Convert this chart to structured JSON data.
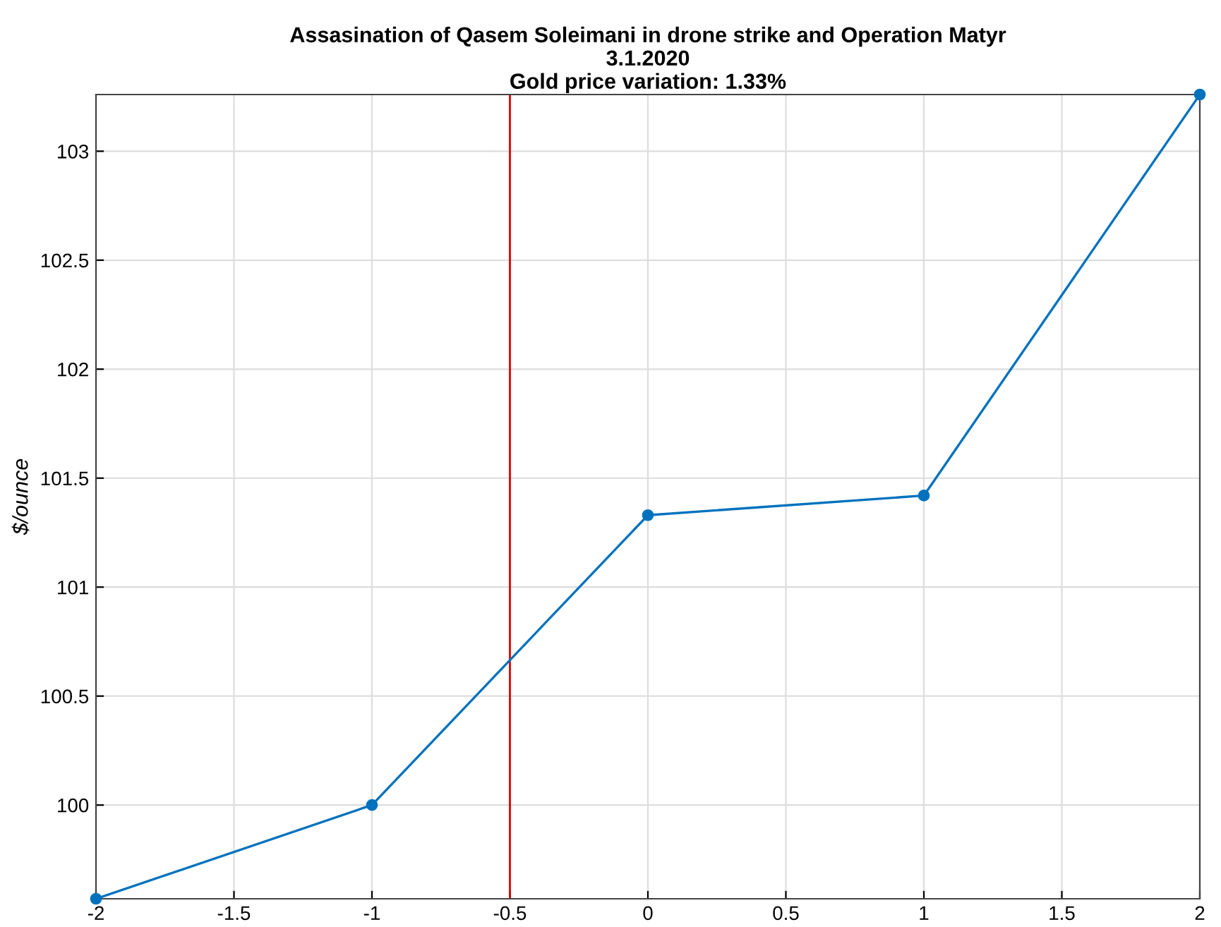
{
  "chart_data": {
    "type": "line",
    "title": "Assasination of Qasem Soleimani in drone strike and Operation Matyr\n3.1.2020\nGold price variation: 1.33%",
    "ylabel": "$/ounce",
    "x": [
      -2,
      -1,
      0,
      1,
      2
    ],
    "series": [
      {
        "color": "#0072bd",
        "values": [
          99.57,
          100.0,
          101.33,
          101.42,
          103.26
        ]
      }
    ],
    "xlim": [
      -2,
      2
    ],
    "ylim": [
      99.57,
      103.26
    ],
    "xticks": [
      -2,
      -1.5,
      -1,
      -0.5,
      0,
      0.5,
      1,
      1.5,
      2
    ],
    "yticks": [
      100,
      100.5,
      101,
      101.5,
      102,
      102.5,
      103
    ],
    "ref_lines": [
      {
        "axis": "x",
        "value": -0.5,
        "color": "#e00000"
      }
    ],
    "grid": true,
    "marker": "circle",
    "line_style": "solid"
  }
}
